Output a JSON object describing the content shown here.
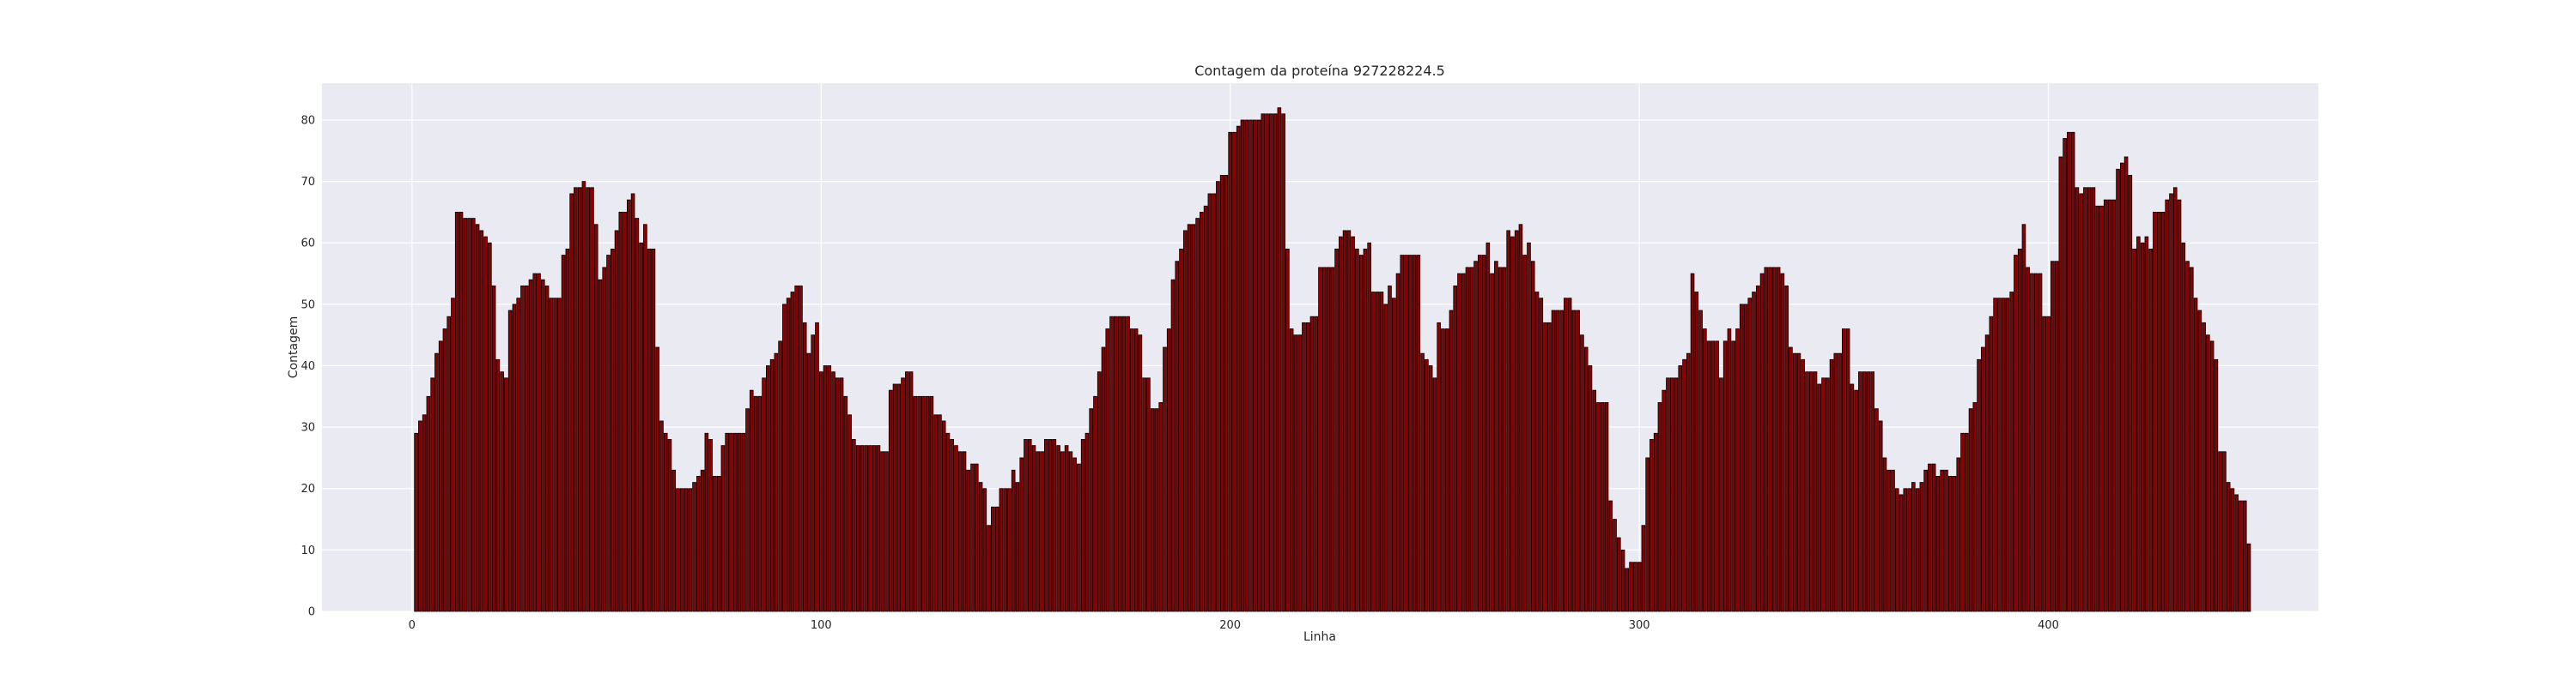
{
  "chart_data": {
    "type": "bar",
    "title": "Contagem da proteína 927228224.5",
    "xlabel": "Linha",
    "ylabel": "Contagem",
    "x_start": 1,
    "xlim": [
      -22,
      466
    ],
    "ylim": [
      0,
      86
    ],
    "xticks": [
      0,
      100,
      200,
      300,
      400
    ],
    "yticks": [
      0,
      10,
      20,
      30,
      40,
      50,
      60,
      70,
      80
    ],
    "grid": true,
    "legend": "none",
    "colors": {
      "bar_fill": "#8b0000",
      "bar_edge": "#000000",
      "plot_bg": "#eaeaf2",
      "grid": "#ffffff"
    },
    "values": [
      29,
      31,
      32,
      35,
      38,
      42,
      44,
      46,
      48,
      51,
      65,
      65,
      64,
      64,
      64,
      63,
      62,
      61,
      60,
      53,
      41,
      39,
      38,
      49,
      50,
      51,
      53,
      53,
      54,
      55,
      55,
      54,
      53,
      51,
      51,
      51,
      58,
      59,
      68,
      69,
      69,
      70,
      69,
      69,
      63,
      54,
      56,
      58,
      59,
      62,
      65,
      65,
      67,
      68,
      64,
      60,
      63,
      59,
      59,
      43,
      31,
      29,
      28,
      23,
      20,
      20,
      20,
      20,
      21,
      22,
      23,
      29,
      28,
      22,
      22,
      27,
      29,
      29,
      29,
      29,
      29,
      33,
      36,
      35,
      35,
      38,
      40,
      41,
      42,
      44,
      50,
      51,
      52,
      53,
      53,
      47,
      42,
      45,
      47,
      39,
      40,
      40,
      39,
      38,
      38,
      35,
      32,
      28,
      27,
      27,
      27,
      27,
      27,
      27,
      26,
      26,
      36,
      37,
      37,
      38,
      39,
      39,
      35,
      35,
      35,
      35,
      35,
      32,
      32,
      31,
      29,
      28,
      27,
      26,
      26,
      23,
      24,
      24,
      21,
      20,
      14,
      17,
      17,
      20,
      20,
      20,
      23,
      21,
      25,
      28,
      28,
      27,
      26,
      26,
      28,
      28,
      28,
      27,
      26,
      27,
      26,
      25,
      24,
      28,
      29,
      33,
      35,
      39,
      43,
      46,
      48,
      48,
      48,
      48,
      48,
      46,
      46,
      45,
      38,
      38,
      33,
      33,
      34,
      43,
      46,
      54,
      57,
      59,
      62,
      63,
      63,
      64,
      65,
      66,
      68,
      68,
      70,
      71,
      71,
      78,
      78,
      79,
      80,
      80,
      80,
      80,
      80,
      81,
      81,
      81,
      81,
      82,
      81,
      59,
      46,
      45,
      45,
      47,
      47,
      48,
      48,
      56,
      56,
      56,
      56,
      59,
      61,
      62,
      62,
      61,
      59,
      58,
      59,
      60,
      52,
      52,
      52,
      50,
      53,
      51,
      55,
      58,
      58,
      58,
      58,
      58,
      42,
      41,
      40,
      38,
      47,
      46,
      46,
      49,
      53,
      55,
      55,
      56,
      56,
      57,
      58,
      58,
      60,
      55,
      57,
      56,
      56,
      62,
      61,
      62,
      63,
      58,
      60,
      57,
      52,
      51,
      47,
      47,
      49,
      49,
      49,
      51,
      51,
      49,
      49,
      45,
      43,
      40,
      36,
      34,
      34,
      34,
      18,
      15,
      12,
      10,
      7,
      8,
      8,
      8,
      14,
      25,
      28,
      29,
      34,
      36,
      38,
      38,
      38,
      40,
      41,
      42,
      55,
      52,
      49,
      46,
      44,
      44,
      44,
      38,
      44,
      46,
      44,
      46,
      50,
      50,
      51,
      52,
      53,
      55,
      56,
      56,
      56,
      56,
      55,
      53,
      43,
      42,
      42,
      41,
      39,
      39,
      39,
      37,
      38,
      38,
      41,
      42,
      42,
      46,
      46,
      37,
      36,
      39,
      39,
      39,
      39,
      33,
      31,
      25,
      23,
      23,
      20,
      19,
      20,
      20,
      21,
      20,
      21,
      23,
      24,
      24,
      22,
      23,
      23,
      22,
      22,
      25,
      29,
      29,
      33,
      34,
      41,
      43,
      45,
      48,
      51,
      51,
      51,
      51,
      52,
      58,
      59,
      63,
      56,
      55,
      55,
      55,
      48,
      48,
      57,
      57,
      74,
      77,
      78,
      78,
      69,
      68,
      69,
      69,
      69,
      66,
      66,
      67,
      67,
      67,
      72,
      73,
      74,
      71,
      59,
      61,
      60,
      61,
      59,
      65,
      65,
      65,
      67,
      68,
      69,
      67,
      60,
      57,
      56,
      51,
      49,
      47,
      45,
      44,
      41,
      26,
      26,
      21,
      20,
      19,
      18,
      18,
      11
    ]
  }
}
